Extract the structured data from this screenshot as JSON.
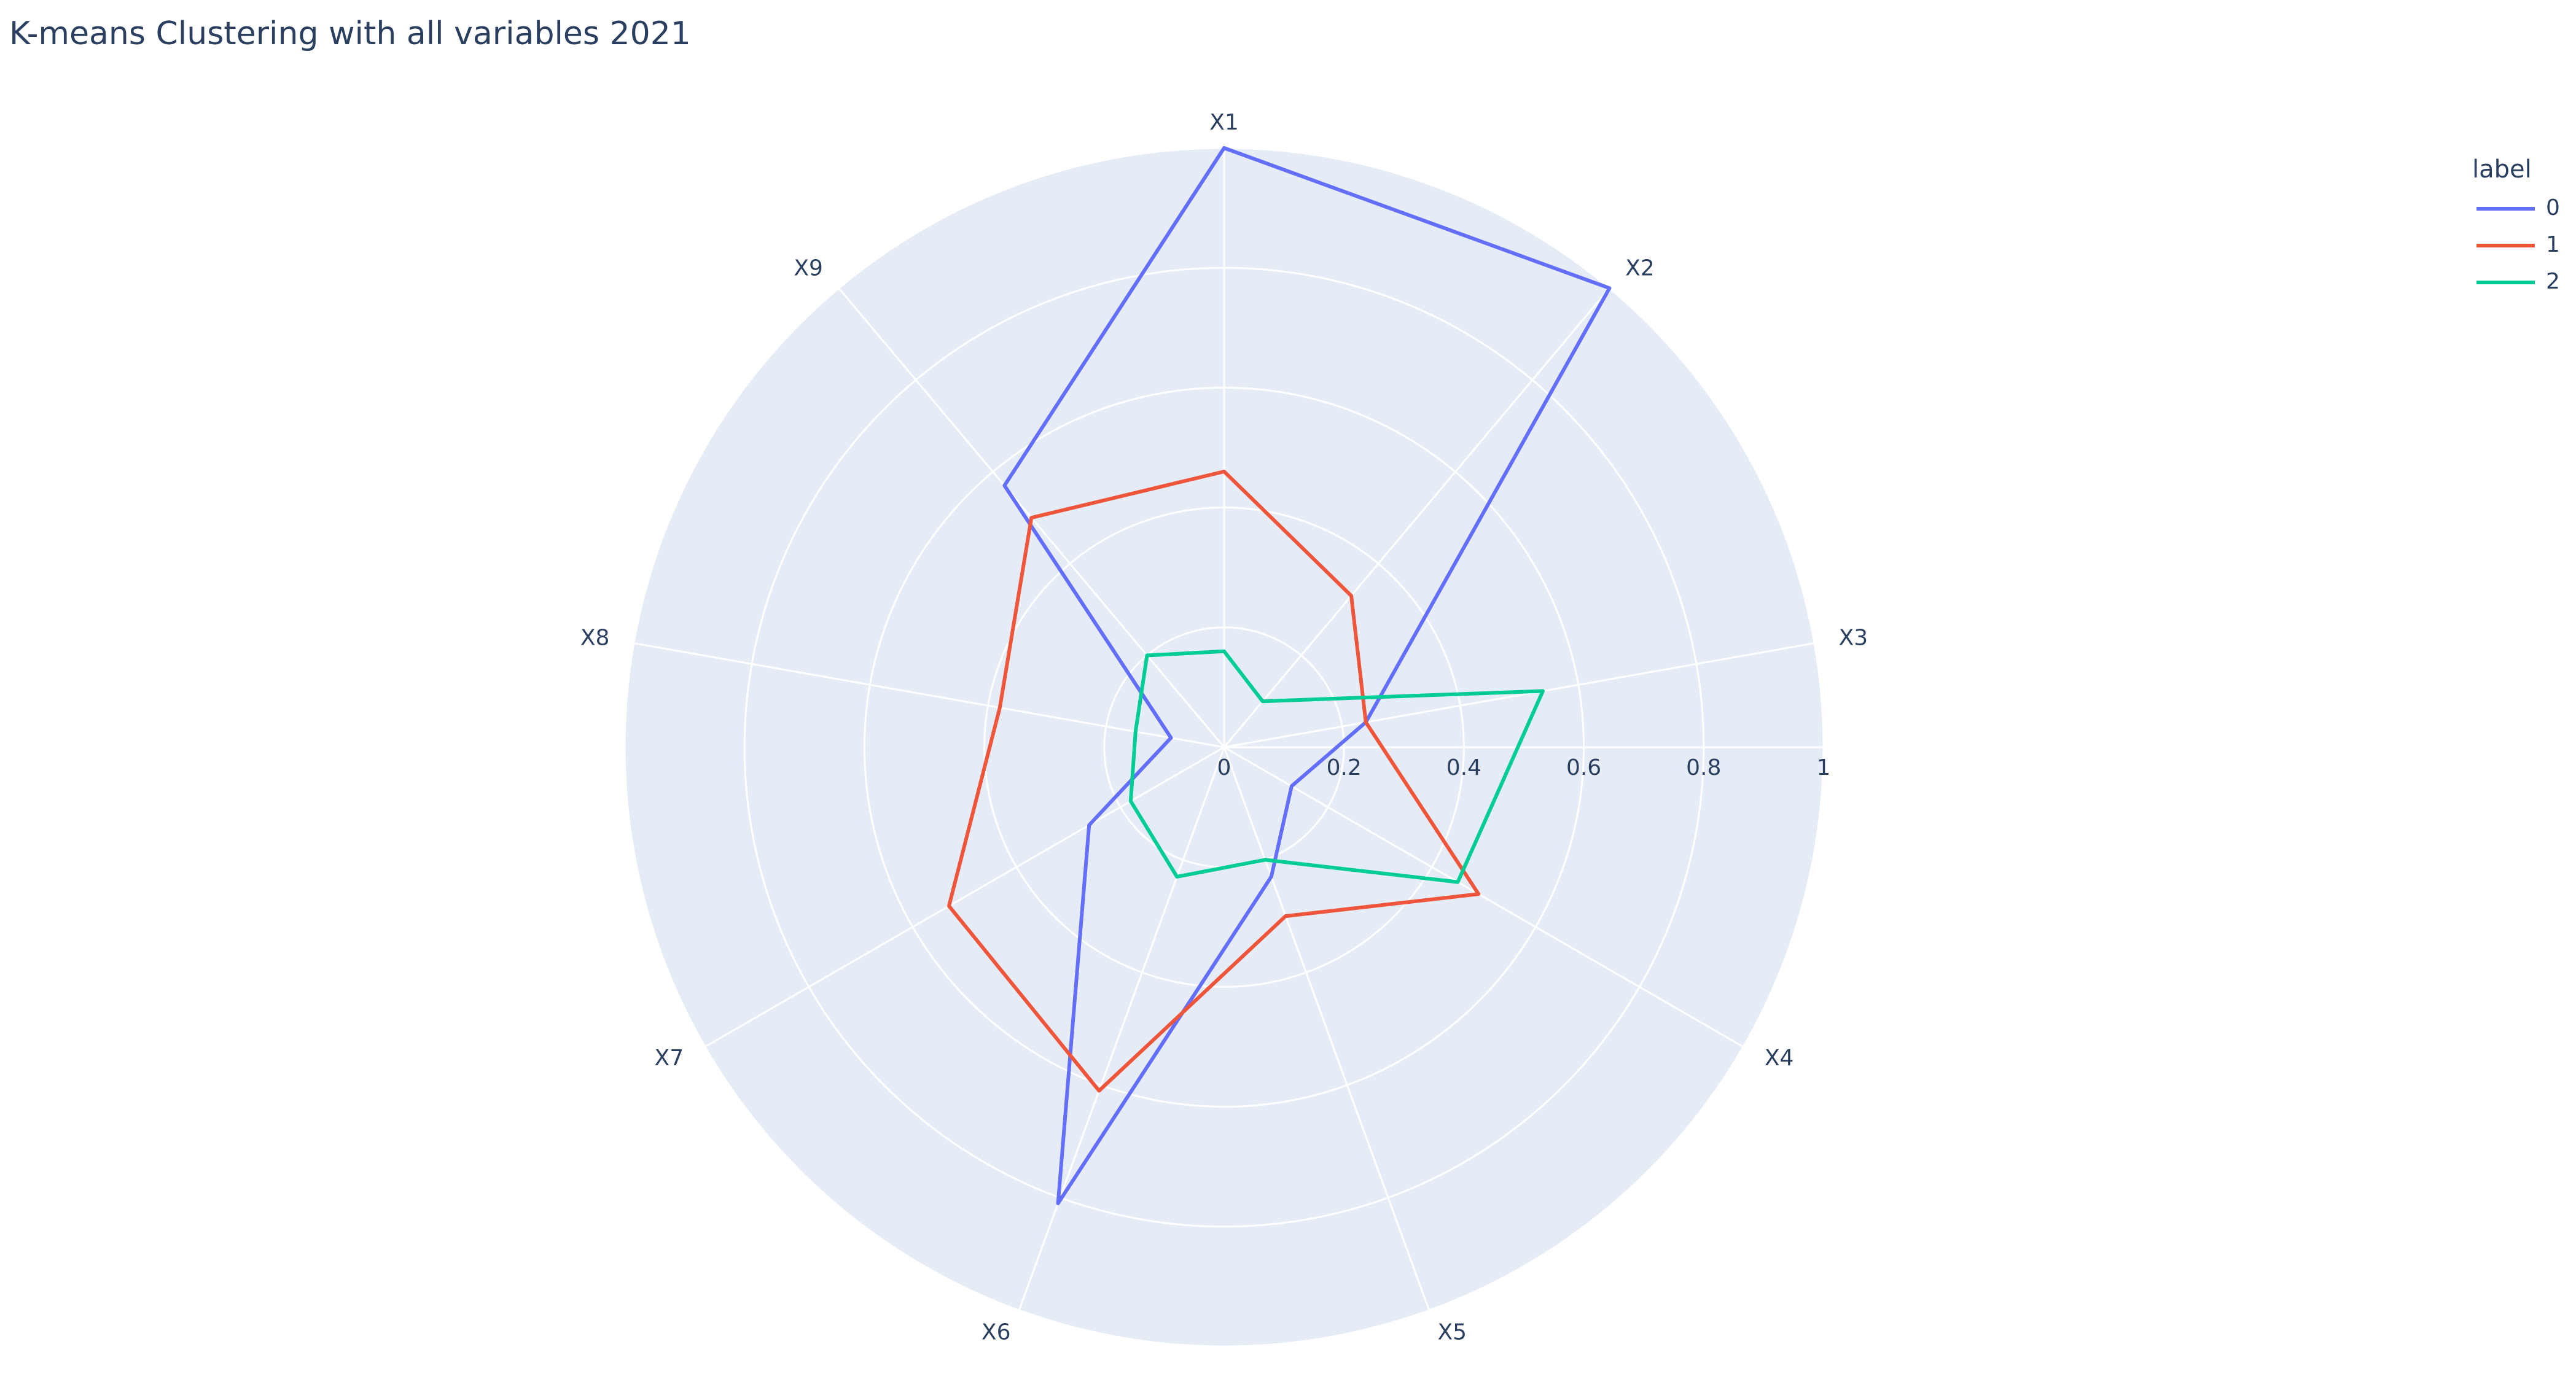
{
  "chart_data": {
    "type": "radar",
    "title": "K-means Clustering with all variables 2021",
    "categories": [
      "X1",
      "X2",
      "X3",
      "X4",
      "X5",
      "X6",
      "X7",
      "X8",
      "X9"
    ],
    "series": [
      {
        "name": "0",
        "color": "#636efa",
        "values": [
          1.0,
          1.0,
          0.24,
          0.13,
          0.23,
          0.81,
          0.26,
          0.09,
          0.57
        ]
      },
      {
        "name": "1",
        "color": "#ef553b",
        "values": [
          0.46,
          0.33,
          0.24,
          0.49,
          0.3,
          0.61,
          0.53,
          0.38,
          0.5
        ]
      },
      {
        "name": "2",
        "color": "#00cc96",
        "values": [
          0.16,
          0.1,
          0.54,
          0.45,
          0.2,
          0.23,
          0.18,
          0.15,
          0.2
        ]
      }
    ],
    "rlim": [
      0,
      1
    ],
    "rticks": [
      0,
      0.2,
      0.4,
      0.6,
      0.8,
      1
    ],
    "legend_title": "label",
    "legend_position": "top-right",
    "grid": true
  }
}
